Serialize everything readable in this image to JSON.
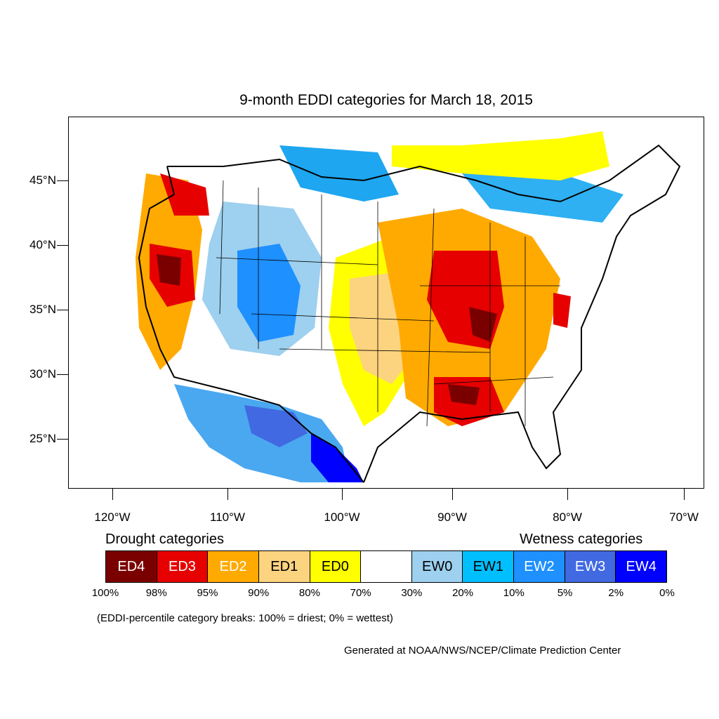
{
  "title": "9-month EDDI categories for March 18, 2015",
  "axes": {
    "lat_labels": [
      "45°N",
      "40°N",
      "35°N",
      "30°N",
      "25°N"
    ],
    "lon_labels": [
      "120°W",
      "110°W",
      "100°W",
      "90°W",
      "80°W",
      "70°W"
    ],
    "lat_values": [
      45,
      40,
      35,
      30,
      25
    ],
    "lon_values": [
      -120,
      -110,
      -100,
      -90,
      -80,
      -70
    ]
  },
  "legend": {
    "drought_heading": "Drought categories",
    "wetness_heading": "Wetness categories",
    "categories": [
      {
        "label": "ED4",
        "color": "#7a0000",
        "text_color": "#ffffff"
      },
      {
        "label": "ED3",
        "color": "#e60000",
        "text_color": "#ffffff"
      },
      {
        "label": "ED2",
        "color": "#ffaa00",
        "text_color": "#ffffff"
      },
      {
        "label": "ED1",
        "color": "#fcd37f",
        "text_color": "#000000"
      },
      {
        "label": "ED0",
        "color": "#ffff00",
        "text_color": "#000000"
      },
      {
        "label": "",
        "color": "#ffffff",
        "text_color": "#000000"
      },
      {
        "label": "EW0",
        "color": "#9ed0ef",
        "text_color": "#000000"
      },
      {
        "label": "EW1",
        "color": "#00bfff",
        "text_color": "#000000"
      },
      {
        "label": "EW2",
        "color": "#1e90ff",
        "text_color": "#ffffff"
      },
      {
        "label": "EW3",
        "color": "#4169e1",
        "text_color": "#ffffff"
      },
      {
        "label": "EW4",
        "color": "#0000ff",
        "text_color": "#ffffff"
      }
    ],
    "breaks": [
      "100%",
      "98%",
      "95%",
      "90%",
      "80%",
      "70%",
      "30%",
      "20%",
      "10%",
      "5%",
      "2%",
      "0%"
    ]
  },
  "note": "(EDDI-percentile category breaks: 100% = driest; 0% = wettest)",
  "credit": "Generated at NOAA/NWS/NCEP/Climate Prediction Center"
}
